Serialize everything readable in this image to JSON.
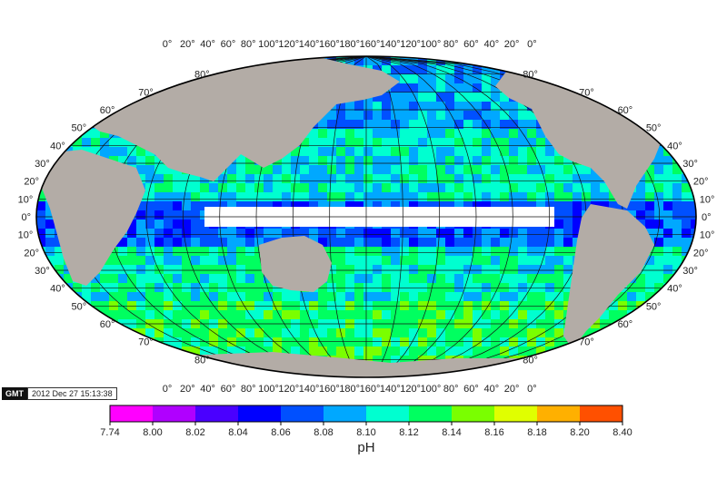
{
  "map": {
    "top_lon_labels": [
      "0°",
      "20°",
      "40°",
      "60°",
      "80°",
      "100°",
      "120°",
      "140°",
      "160°",
      "180°",
      "160°",
      "140°",
      "120°",
      "100°",
      "80°",
      "60°",
      "40°",
      "20°",
      "0°"
    ],
    "bottom_lon_labels": [
      "0°",
      "20°",
      "40°",
      "60°",
      "80°",
      "100°",
      "120°",
      "140°",
      "160°",
      "180°",
      "160°",
      "140°",
      "120°",
      "100°",
      "80°",
      "60°",
      "40°",
      "20°",
      "0°"
    ],
    "lat_labels": [
      "80°",
      "70°",
      "60°",
      "50°",
      "40°",
      "30°",
      "20°",
      "10°",
      "0°",
      "10°",
      "20°",
      "30°",
      "40°",
      "50°",
      "60°",
      "70°",
      "80°"
    ],
    "lat_values": [
      80,
      70,
      60,
      50,
      40,
      30,
      20,
      10,
      0,
      -10,
      -20,
      -30,
      -40,
      -50,
      -60,
      -70,
      -80
    ],
    "land_color": "#b3aca6",
    "sea_ice_edge_color": "#ff6b6b"
  },
  "colorbar": {
    "ticks": [
      "7.74",
      "8.00",
      "8.02",
      "8.04",
      "8.06",
      "8.08",
      "8.10",
      "8.12",
      "8.14",
      "8.16",
      "8.18",
      "8.20",
      "8.40"
    ],
    "title": "pH",
    "colors": [
      "#ff00ff",
      "#b000ff",
      "#4a00ff",
      "#0000ff",
      "#0050ff",
      "#00a8ff",
      "#00ffd0",
      "#00ff60",
      "#7aff00",
      "#e0ff00",
      "#ffb000",
      "#ff5000",
      "#ff0000"
    ]
  },
  "stamp": {
    "logo": "GMT",
    "timestamp": "2012 Dec 27 15:13:38"
  }
}
